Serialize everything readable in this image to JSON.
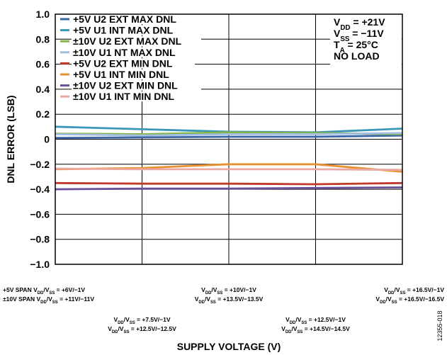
{
  "chart_data": {
    "type": "line",
    "ylabel": "DNL ERROR (LSB)",
    "xlabel": "SUPPLY VOLTAGE (V)",
    "ylim": [
      -1.0,
      1.0
    ],
    "yticks": [
      1.0,
      0.8,
      0.6,
      0.4,
      0.2,
      0,
      -0.2,
      -0.4,
      -0.6,
      -0.8,
      -1.0
    ],
    "ytick_labels": [
      "1.0",
      "0.8",
      "0.6",
      "0.4",
      "0.2",
      "0",
      "−0.2",
      "−0.4",
      "−0.6",
      "−0.8",
      "−1.0"
    ],
    "grid": true,
    "legend_position": "top-left",
    "x_categories": [
      [
        {
          "prefix": "+5V SPAN ",
          "main": "V",
          "sub1": "DD",
          "mid": "/V",
          "sub2": "SS",
          "rest": " = +6V/−1V"
        },
        {
          "prefix": "±10V SPAN ",
          "main": "V",
          "sub1": "DD",
          "mid": "/V",
          "sub2": "SS",
          "rest": " = +11V/−11V"
        }
      ],
      [
        {
          "prefix": "",
          "main": "V",
          "sub1": "DD",
          "mid": "/V",
          "sub2": "SS",
          "rest": " = +7.5V/−1V"
        },
        {
          "prefix": "",
          "main": "V",
          "sub1": "DD",
          "mid": "/V",
          "sub2": "SS",
          "rest": " = +12.5V/−12.5V"
        }
      ],
      [
        {
          "prefix": "",
          "main": "V",
          "sub1": "DD",
          "mid": "/V",
          "sub2": "SS",
          "rest": " = +10V/−1V"
        },
        {
          "prefix": "",
          "main": "V",
          "sub1": "DD",
          "mid": "/V",
          "sub2": "SS",
          "rest": " = +13.5V/−13.5V"
        }
      ],
      [
        {
          "prefix": "",
          "main": "V",
          "sub1": "DD",
          "mid": "/V",
          "sub2": "SS",
          "rest": " = +12.5V/−1V"
        },
        {
          "prefix": "",
          "main": "V",
          "sub1": "DD",
          "mid": "/V",
          "sub2": "SS",
          "rest": " = +14.5V/−14.5V"
        }
      ],
      [
        {
          "prefix": "",
          "main": "V",
          "sub1": "DD",
          "mid": "/V",
          "sub2": "SS",
          "rest": " = +16.5V/−1V"
        },
        {
          "prefix": "",
          "main": "V",
          "sub1": "DD",
          "mid": "/V",
          "sub2": "SS",
          "rest": " = +16.5V/−16.5V"
        }
      ]
    ],
    "series": [
      {
        "name": "+5V U2 EXT MAX DNL",
        "color": "#3a66a8",
        "values": [
          0.01,
          0.015,
          0.02,
          0.02,
          0.03
        ]
      },
      {
        "name": "+5V U1 INT MAX DNL",
        "color": "#3a97b8",
        "values": [
          0.1,
          0.08,
          0.06,
          0.055,
          0.085
        ]
      },
      {
        "name": "±10V U2 EXT MAX DNL",
        "color": "#84b548",
        "values": [
          0.045,
          0.04,
          0.055,
          0.05,
          0.04
        ]
      },
      {
        "name": "±10V U1 NT MAX DNL",
        "color": "#a2bde0",
        "values": [
          0.04,
          0.03,
          0.04,
          0.04,
          0.05
        ]
      },
      {
        "name": "+5V U2 EXT MIN DNL",
        "color": "#c0392b",
        "values": [
          -0.35,
          -0.355,
          -0.355,
          -0.36,
          -0.35
        ]
      },
      {
        "name": "+5V U1 INT MIN DNL",
        "color": "#e8902f",
        "values": [
          -0.24,
          -0.23,
          -0.2,
          -0.2,
          -0.26
        ]
      },
      {
        "name": "±10V U2 EXT MIN DNL",
        "color": "#6a4f9a",
        "values": [
          -0.4,
          -0.395,
          -0.395,
          -0.39,
          -0.385
        ]
      },
      {
        "name": "±10V U1 INT MIN DNL",
        "color": "#eba8a0",
        "values": [
          -0.235,
          -0.24,
          -0.24,
          -0.24,
          -0.245
        ]
      }
    ],
    "conditions": [
      {
        "main": "V",
        "sub": "DD",
        "rest": " = +21V"
      },
      {
        "main": "V",
        "sub": "SS",
        "rest": " = −11V"
      },
      {
        "main": "T",
        "sub": "A",
        "rest": " = 25°C"
      },
      {
        "main": "NO LOAD",
        "sub": "",
        "rest": ""
      }
    ]
  },
  "figure_id": "12355-018"
}
